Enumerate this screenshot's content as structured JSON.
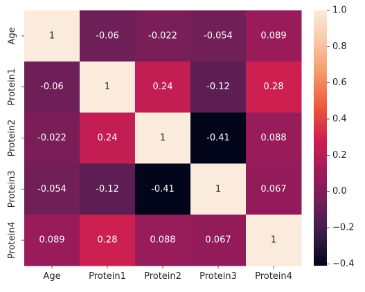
{
  "chart_data": {
    "type": "heatmap",
    "title": "",
    "xlabel": "",
    "ylabel": "",
    "x_categories": [
      "Age",
      "Protein1",
      "Protein2",
      "Protein3",
      "Protein4"
    ],
    "y_categories": [
      "Age",
      "Protein1",
      "Protein2",
      "Protein3",
      "Protein4"
    ],
    "values": [
      [
        1,
        -0.06,
        -0.022,
        -0.054,
        0.089
      ],
      [
        -0.06,
        1,
        0.24,
        -0.12,
        0.28
      ],
      [
        -0.022,
        0.24,
        1,
        -0.41,
        0.088
      ],
      [
        -0.054,
        -0.12,
        -0.41,
        1,
        0.067
      ],
      [
        0.089,
        0.28,
        0.088,
        0.067,
        1
      ]
    ],
    "cell_labels": [
      [
        "1",
        "-0.06",
        "-0.022",
        "-0.054",
        "0.089"
      ],
      [
        "-0.06",
        "1",
        "0.24",
        "-0.12",
        "0.28"
      ],
      [
        "-0.022",
        "0.24",
        "1",
        "-0.41",
        "0.088"
      ],
      [
        "-0.054",
        "-0.12",
        "-0.41",
        "1",
        "0.067"
      ],
      [
        "0.089",
        "0.28",
        "0.088",
        "0.067",
        "1"
      ]
    ],
    "colorbar": {
      "min": -0.41,
      "max": 1.0,
      "ticks": [
        -0.4,
        -0.2,
        0.0,
        0.2,
        0.4,
        0.6,
        0.8,
        1.0
      ],
      "tick_labels": [
        "−0.4",
        "−0.2",
        "0.0",
        "0.2",
        "0.4",
        "0.6",
        "0.8",
        "1.0"
      ],
      "colormap": "rocket",
      "colormap_stops": [
        "#03051a",
        "#3b1b4c",
        "#701f57",
        "#a11a5b",
        "#d1204f",
        "#ed5a3d",
        "#f4976a",
        "#f8c6a4",
        "#faebdd"
      ]
    },
    "legend": "colorbar-right",
    "grid": false
  }
}
